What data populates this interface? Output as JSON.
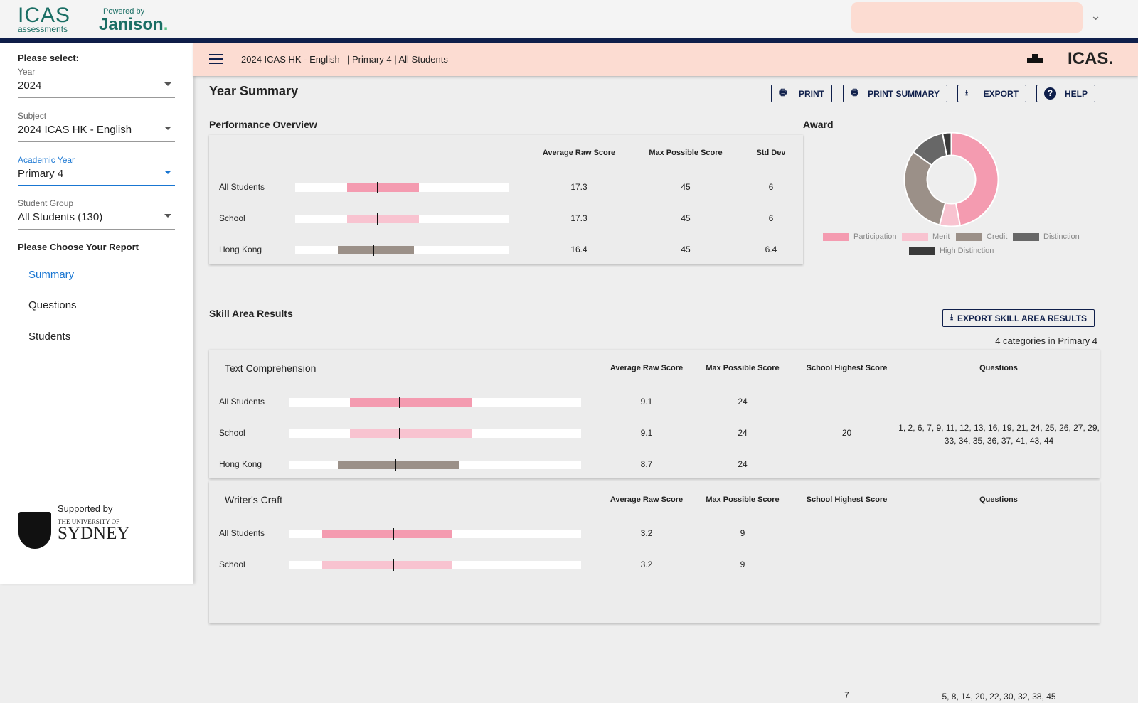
{
  "header": {
    "logo_main": "ICAS",
    "logo_sub": "assessments",
    "powered_by": "Powered by",
    "partner": "Janison"
  },
  "sidebar": {
    "please_select": "Please select:",
    "fields": [
      {
        "label": "Year",
        "value": "2024"
      },
      {
        "label": "Subject",
        "value": "2024 ICAS HK - English"
      },
      {
        "label": "Academic Year",
        "value": "Primary 4"
      },
      {
        "label": "Student Group",
        "value": "All Students (130)"
      }
    ],
    "choose_report": "Please Choose Your Report",
    "reports": [
      "Summary",
      "Questions",
      "Students"
    ],
    "supported_by": "Supported by",
    "university_line1": "THE UNIVERSITY OF",
    "university_line2": "SYDNEY"
  },
  "topbar": {
    "subject": "2024 ICAS HK - English",
    "context": "| Primary 4 | All Students",
    "brand": "ICAS."
  },
  "page": {
    "title": "Year Summary",
    "buttons": {
      "print": "PRINT",
      "print_summary": "PRINT SUMMARY",
      "export": "EXPORT",
      "help": "HELP"
    }
  },
  "overview": {
    "title": "Performance Overview",
    "headers": [
      "Average Raw Score",
      "Max Possible Score",
      "Std Dev"
    ],
    "rows": [
      {
        "label": "All Students",
        "avg": "17.3",
        "max": "45",
        "sd": "6",
        "range": [
          10.9,
          26.0
        ],
        "mean": 17.3,
        "color": "#f49bb0"
      },
      {
        "label": "School",
        "avg": "17.3",
        "max": "45",
        "sd": "6",
        "range": [
          10.9,
          26.0
        ],
        "mean": 17.3,
        "color": "#f8c3d0"
      },
      {
        "label": "Hong Kong",
        "avg": "16.4",
        "max": "45",
        "sd": "6.4",
        "range": [
          9.0,
          25.0
        ],
        "mean": 16.4,
        "color": "#9b9088"
      }
    ]
  },
  "award": {
    "title": "Award",
    "slices": [
      {
        "label": "Participation",
        "percent": 47,
        "color": "#f49bb0"
      },
      {
        "label": "Merit",
        "percent": 7,
        "color": "#f8c3d0"
      },
      {
        "label": "Credit",
        "percent": 31,
        "color": "#9b9088"
      },
      {
        "label": "Distinction",
        "percent": 12,
        "color": "#676767"
      },
      {
        "label": "High Distinction",
        "percent": 3,
        "color": "#3a3a3a"
      }
    ]
  },
  "skills": {
    "title": "Skill Area Results",
    "export_button": "EXPORT SKILL AREA RESULTS",
    "count_text": "4 categories in Primary 4",
    "headers": [
      "Average Raw Score",
      "Max Possible Score",
      "School Highest Score",
      "Questions"
    ],
    "areas": [
      {
        "name": "Text Comprehension",
        "highest": "20",
        "questions": "1, 2, 6, 7, 9, 11, 12, 13, 16, 19, 21, 24, 25, 26, 27, 29, 33, 34, 35, 36, 37, 41, 43, 44",
        "rows": [
          {
            "label": "All Students",
            "avg": "9.1",
            "max": "24",
            "range": [
              5.0,
              15.0
            ],
            "mean": 9.1,
            "maxv": 24,
            "color": "#f49bb0"
          },
          {
            "label": "School",
            "avg": "9.1",
            "max": "24",
            "range": [
              5.0,
              15.0
            ],
            "mean": 9.1,
            "maxv": 24,
            "color": "#f8c3d0"
          },
          {
            "label": "Hong Kong",
            "avg": "8.7",
            "max": "24",
            "range": [
              4.0,
              14.0
            ],
            "mean": 8.7,
            "maxv": 24,
            "color": "#9b9088"
          }
        ]
      },
      {
        "name": "Writer's Craft",
        "highest": "7",
        "questions": "5, 8, 14, 20, 22, 30, 32, 38, 45",
        "rows": [
          {
            "label": "All Students",
            "avg": "3.2",
            "max": "9",
            "range": [
              1.0,
              5.0
            ],
            "mean": 3.2,
            "maxv": 9,
            "color": "#f49bb0"
          },
          {
            "label": "School",
            "avg": "3.2",
            "max": "9",
            "range": [
              1.0,
              5.0
            ],
            "mean": 3.2,
            "maxv": 9,
            "color": "#f8c3d0"
          }
        ]
      }
    ]
  }
}
